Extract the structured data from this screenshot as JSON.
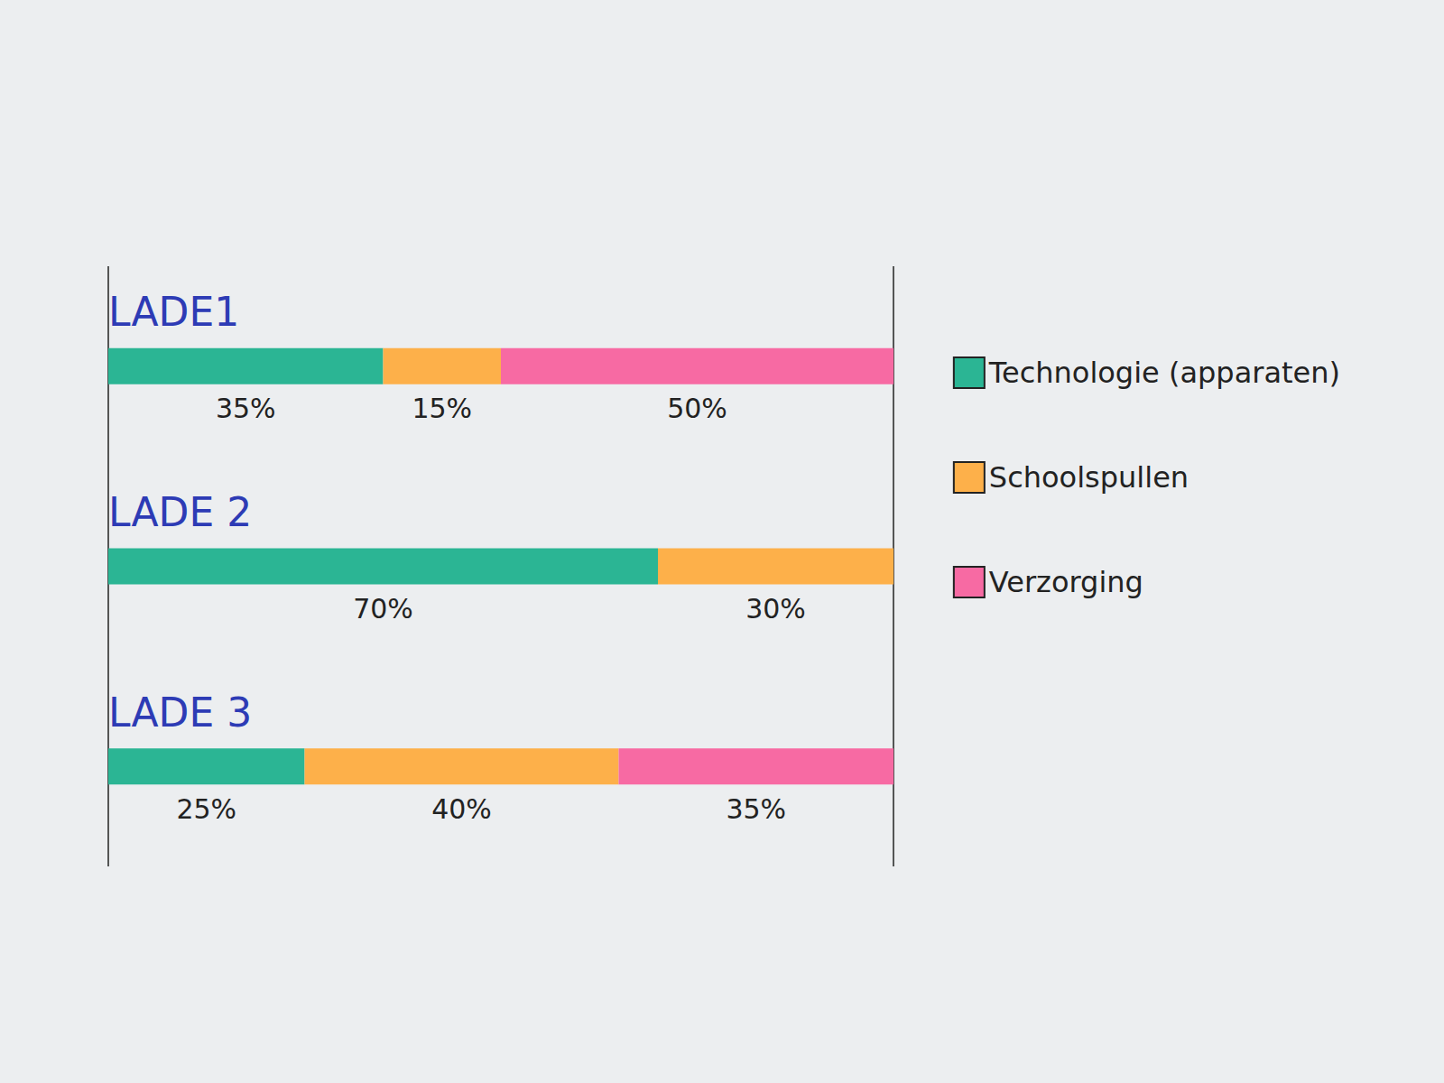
{
  "chart_data": {
    "type": "bar",
    "orientation": "horizontal",
    "stacked": true,
    "categories": [
      "LADE1",
      "LADE 2",
      "LADE 3"
    ],
    "series": [
      {
        "name": "Technologie (apparaten)",
        "color": "#2bb594",
        "values": [
          35,
          70,
          25
        ],
        "value_labels": [
          "35%",
          "70%",
          "25%"
        ]
      },
      {
        "name": "Schoolspullen",
        "color": "#fdb04a",
        "values": [
          15,
          30,
          40
        ],
        "value_labels": [
          "15%",
          "30%",
          "40%"
        ]
      },
      {
        "name": "Verzorging",
        "color": "#f76aa3",
        "values": [
          50,
          null,
          35
        ],
        "value_labels": [
          "50%",
          null,
          "35%"
        ]
      }
    ],
    "xlim": [
      0,
      100
    ],
    "xticks": [
      0,
      100
    ],
    "data_labels": true,
    "tick_labels": false,
    "legend": "right"
  }
}
